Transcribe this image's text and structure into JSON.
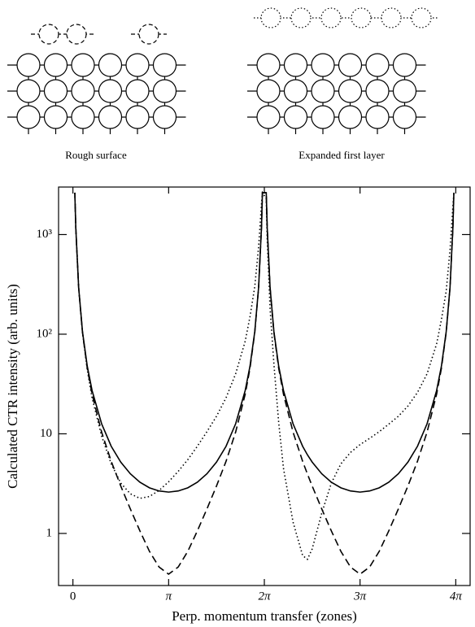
{
  "panels": [
    {
      "label": "Rough surface"
    },
    {
      "label": "Expanded first layer"
    }
  ],
  "chart_data": {
    "type": "line",
    "ylabel": "Calculated CTR intensity (arb. units)",
    "xlabel": "Perp. momentum transfer (zones)",
    "log_y": true,
    "xlim": [
      -0.15,
      4.15
    ],
    "ylim": [
      0.3,
      3000
    ],
    "xticks": [
      0,
      {
        "value": 1,
        "label": "π"
      },
      {
        "value": 2,
        "label": "2π"
      },
      {
        "value": 3,
        "label": "3π"
      },
      {
        "value": 4,
        "label": "4π"
      }
    ],
    "yticks": [
      1,
      10,
      {
        "value": 100,
        "label": "10²"
      },
      {
        "value": 1000,
        "label": "10³"
      }
    ],
    "x": [
      0.02,
      0.03,
      0.06,
      0.1,
      0.15,
      0.2,
      0.3,
      0.4,
      0.5,
      0.6,
      0.7,
      0.8,
      0.9,
      1.0,
      1.1,
      1.2,
      1.3,
      1.4,
      1.5,
      1.6,
      1.7,
      1.8,
      1.85,
      1.9,
      1.94,
      1.97,
      1.98,
      2.02,
      2.03,
      2.06,
      2.1,
      2.15,
      2.2,
      2.3,
      2.4,
      2.45,
      2.5,
      2.6,
      2.7,
      2.8,
      2.9,
      3.0,
      3.1,
      3.2,
      3.3,
      3.4,
      3.5,
      3.6,
      3.7,
      3.8,
      3.85,
      3.9,
      3.94,
      3.97,
      3.98
    ],
    "series": [
      {
        "style": "solid",
        "color": "#000000",
        "values": [
          2634,
          1171,
          294,
          106,
          47.7,
          27.2,
          12.6,
          7.5,
          5.2,
          3.97,
          3.27,
          2.87,
          2.67,
          2.6,
          2.67,
          2.87,
          3.27,
          3.97,
          5.2,
          7.5,
          12.6,
          27.2,
          47.7,
          106,
          294,
          1171,
          2634,
          2634,
          1171,
          294,
          106,
          47.7,
          27.2,
          12.6,
          7.5,
          6.16,
          5.2,
          3.97,
          3.27,
          2.87,
          2.67,
          2.6,
          2.67,
          2.87,
          3.27,
          3.97,
          5.2,
          7.5,
          12.6,
          27.2,
          47.7,
          106,
          294,
          1171,
          2634
        ]
      },
      {
        "style": "dashed",
        "color": "#000000",
        "values": [
          2632,
          1169,
          292,
          104,
          45.5,
          25.0,
          10.4,
          5.3,
          2.99,
          1.76,
          1.06,
          0.66,
          0.46,
          0.39,
          0.46,
          0.66,
          1.06,
          1.76,
          2.99,
          5.3,
          10.4,
          25.0,
          45.5,
          104,
          292,
          1169,
          2632,
          2632,
          1169,
          292,
          104,
          45.5,
          25.0,
          10.4,
          5.3,
          3.95,
          2.99,
          1.76,
          1.06,
          0.66,
          0.46,
          0.39,
          0.46,
          0.66,
          1.06,
          1.76,
          2.99,
          5.3,
          10.4,
          25.0,
          45.5,
          104,
          292,
          1169,
          2632
        ]
      },
      {
        "style": "dotted",
        "color": "#000000",
        "values": [
          2634,
          1171,
          294,
          104,
          44,
          23,
          9.5,
          5.0,
          3.2,
          2.5,
          2.25,
          2.35,
          2.7,
          3.3,
          4.2,
          5.5,
          7.5,
          10.5,
          15,
          23,
          40,
          85,
          150,
          300,
          750,
          2000,
          2634,
          2300,
          900,
          180,
          50,
          13,
          4.5,
          1.3,
          0.6,
          0.55,
          0.7,
          1.6,
          3.2,
          5,
          6.5,
          7.8,
          9,
          10.5,
          12.5,
          15,
          19,
          26,
          40,
          80,
          140,
          270,
          700,
          1900,
          2600
        ]
      }
    ]
  }
}
